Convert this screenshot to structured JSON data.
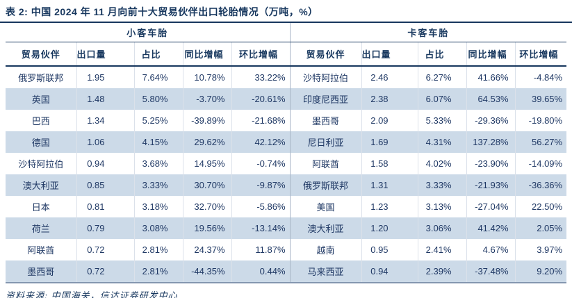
{
  "title": "表 2:  中国 2024 年 11 月向前十大贸易伙伴出口轮胎情况（万吨，%）",
  "source": "资料来源:  中国海关，信达证券研发中心",
  "columns": [
    "贸易伙伴",
    "出口量",
    "占比",
    "同比增幅",
    "环比增幅"
  ],
  "colors": {
    "header_text": "#17375e",
    "body_text": "#1f3864",
    "row_stripe": "#ccdae8",
    "rule_dark": "#17375e",
    "rule_bottom": "#8497b0"
  },
  "sections": [
    {
      "name": "小客车胎",
      "rows": [
        [
          "俄罗斯联邦",
          "1.95",
          "7.64%",
          "10.78%",
          "33.22%"
        ],
        [
          "英国",
          "1.48",
          "5.80%",
          "-3.70%",
          "-20.61%"
        ],
        [
          "巴西",
          "1.34",
          "5.25%",
          "-39.89%",
          "-21.68%"
        ],
        [
          "德国",
          "1.06",
          "4.15%",
          "29.62%",
          "42.12%"
        ],
        [
          "沙特阿拉伯",
          "0.94",
          "3.68%",
          "14.95%",
          "-0.74%"
        ],
        [
          "澳大利亚",
          "0.85",
          "3.33%",
          "30.70%",
          "-9.87%"
        ],
        [
          "日本",
          "0.81",
          "3.18%",
          "32.70%",
          "-5.86%"
        ],
        [
          "荷兰",
          "0.79",
          "3.08%",
          "19.56%",
          "-13.14%"
        ],
        [
          "阿联酋",
          "0.72",
          "2.81%",
          "24.37%",
          "11.87%"
        ],
        [
          "墨西哥",
          "0.72",
          "2.81%",
          "-44.35%",
          "0.44%"
        ]
      ]
    },
    {
      "name": "卡客车胎",
      "rows": [
        [
          "沙特阿拉伯",
          "2.46",
          "6.27%",
          "41.66%",
          "-4.84%"
        ],
        [
          "印度尼西亚",
          "2.38",
          "6.07%",
          "64.53%",
          "39.65%"
        ],
        [
          "墨西哥",
          "2.09",
          "5.33%",
          "-29.36%",
          "-19.80%"
        ],
        [
          "尼日利亚",
          "1.69",
          "4.31%",
          "137.28%",
          "56.27%"
        ],
        [
          "阿联酋",
          "1.58",
          "4.02%",
          "-23.90%",
          "-14.09%"
        ],
        [
          "俄罗斯联邦",
          "1.31",
          "3.33%",
          "-21.93%",
          "-36.36%"
        ],
        [
          "美国",
          "1.23",
          "3.13%",
          "-27.04%",
          "22.50%"
        ],
        [
          "澳大利亚",
          "1.20",
          "3.06%",
          "41.42%",
          "2.05%"
        ],
        [
          "越南",
          "0.95",
          "2.41%",
          "4.67%",
          "3.97%"
        ],
        [
          "马来西亚",
          "0.94",
          "2.39%",
          "-37.48%",
          "9.20%"
        ]
      ]
    }
  ]
}
